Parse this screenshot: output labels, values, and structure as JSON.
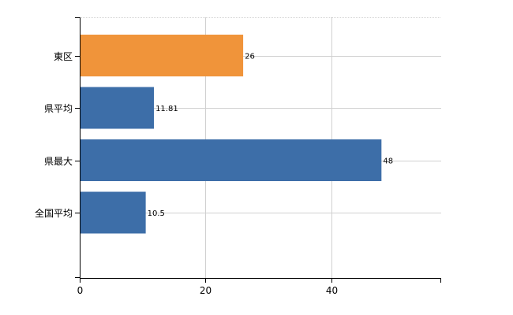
{
  "chart_data": {
    "type": "bar",
    "orientation": "horizontal",
    "categories": [
      "東区",
      "県平均",
      "県最大",
      "全国平均"
    ],
    "values": [
      26,
      11.81,
      48,
      10.5
    ],
    "value_labels": [
      "26",
      "11.81",
      "48",
      "10.5"
    ],
    "bar_colors": [
      "#f0943a",
      "#3d6ea8",
      "#3d6ea8",
      "#3d6ea8"
    ],
    "xlim": [
      0,
      57.5
    ],
    "x_ticks": [
      0,
      20,
      40
    ],
    "x_tick_labels": [
      "0",
      "20",
      "40"
    ],
    "grid": true,
    "title": "",
    "xlabel": "",
    "ylabel": ""
  },
  "colors": {
    "highlight": "#f0943a",
    "bar": "#3d6ea8",
    "grid": "#d0d0d0",
    "axis": "#000000"
  }
}
